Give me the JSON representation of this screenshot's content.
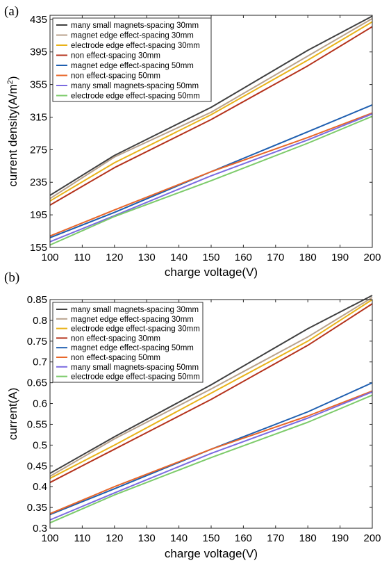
{
  "chart_data": [
    {
      "panel_label": "(a)",
      "type": "line",
      "xlabel": "charge voltage(V)",
      "ylabel_main": "current density(A/m",
      "ylabel_sup": "2",
      "ylabel_end": ")",
      "xlim": [
        100,
        200
      ],
      "ylim": [
        155,
        440
      ],
      "xticks": [
        "100",
        "110",
        "120",
        "130",
        "140",
        "150",
        "160",
        "170",
        "180",
        "190",
        "200"
      ],
      "yticks": [
        "155",
        "195",
        "235",
        "275",
        "315",
        "355",
        "395",
        "435"
      ],
      "x": [
        100,
        120,
        150,
        180,
        200
      ],
      "legend_position": "top-left",
      "series": [
        {
          "name": "many small magnets-spacing 30mm",
          "color": "#404040",
          "values": [
            219,
            268,
            327,
            397,
            439
          ]
        },
        {
          "name": "magnet edge effect-spacing 30mm",
          "color": "#b8a28c",
          "values": [
            215,
            266,
            321,
            390,
            436
          ]
        },
        {
          "name": "electrode edge effect-spacing 30mm",
          "color": "#e9b219",
          "values": [
            212,
            259,
            318,
            385,
            432
          ]
        },
        {
          "name": "non effect-spacing 30mm",
          "color": "#b5331c",
          "values": [
            207,
            253,
            312,
            378,
            426
          ]
        },
        {
          "name": "magnet edge effect-spacing 50mm",
          "color": "#1f5fb0",
          "values": [
            167,
            198,
            248,
            297,
            330
          ]
        },
        {
          "name": "non effect-spacing 50mm",
          "color": "#e8672a",
          "values": [
            169,
            201,
            248,
            290,
            320
          ]
        },
        {
          "name": "many small magnets-spacing 50mm",
          "color": "#7b6be0",
          "values": [
            162,
            194,
            243,
            287,
            319
          ]
        },
        {
          "name": "electrode edge effect-spacing 50mm",
          "color": "#7dcb6b",
          "values": [
            158,
            193,
            237,
            283,
            316
          ]
        }
      ]
    },
    {
      "panel_label": "(b)",
      "type": "line",
      "xlabel": "charge voltage(V)",
      "ylabel_main": "current(A)",
      "ylabel_sup": "",
      "ylabel_end": "",
      "xlim": [
        100,
        200
      ],
      "ylim": [
        0.3,
        0.85
      ],
      "xticks": [
        "100",
        "110",
        "120",
        "130",
        "140",
        "150",
        "160",
        "170",
        "180",
        "190",
        "200"
      ],
      "yticks": [
        "0.3",
        "0.35",
        "0.4",
        "0.45",
        "0.5",
        "0.55",
        "0.6",
        "0.65",
        "0.7",
        "0.75",
        "0.8",
        "0.85"
      ],
      "x": [
        100,
        120,
        150,
        180,
        200
      ],
      "legend_position": "top-left",
      "series": [
        {
          "name": "many small magnets-spacing 30mm",
          "color": "#404040",
          "values": [
            0.432,
            0.52,
            0.645,
            0.78,
            0.86
          ]
        },
        {
          "name": "magnet edge effect-spacing 30mm",
          "color": "#b8a28c",
          "values": [
            0.425,
            0.515,
            0.635,
            0.76,
            0.855
          ]
        },
        {
          "name": "electrode edge effect-spacing 30mm",
          "color": "#e9b219",
          "values": [
            0.42,
            0.5,
            0.625,
            0.75,
            0.85
          ]
        },
        {
          "name": "non effect-spacing 30mm",
          "color": "#b5331c",
          "values": [
            0.41,
            0.49,
            0.61,
            0.74,
            0.84
          ]
        },
        {
          "name": "magnet edge effect-spacing 50mm",
          "color": "#1f5fb0",
          "values": [
            0.333,
            0.395,
            0.49,
            0.58,
            0.65
          ]
        },
        {
          "name": "non effect-spacing 50mm",
          "color": "#e8672a",
          "values": [
            0.335,
            0.4,
            0.49,
            0.57,
            0.63
          ]
        },
        {
          "name": "many small magnets-spacing 50mm",
          "color": "#7b6be0",
          "values": [
            0.32,
            0.385,
            0.48,
            0.565,
            0.628
          ]
        },
        {
          "name": "electrode edge effect-spacing 50mm",
          "color": "#7dcb6b",
          "values": [
            0.313,
            0.38,
            0.47,
            0.555,
            0.62
          ]
        }
      ]
    }
  ]
}
